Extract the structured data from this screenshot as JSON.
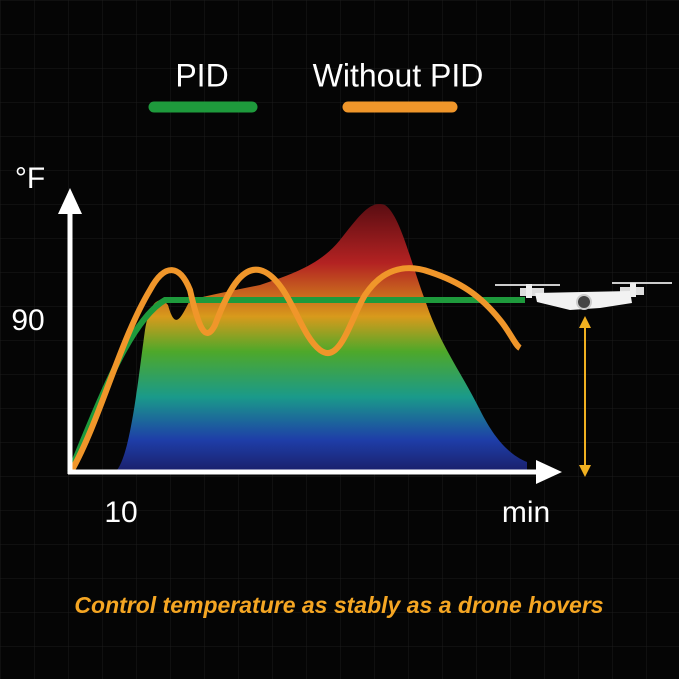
{
  "legend": {
    "items": [
      "PID",
      "Without PID"
    ]
  },
  "axes": {
    "y_unit": "°F",
    "y_label": "90",
    "x_label": "10",
    "x_unit": "min"
  },
  "caption": "Control temperature as stably as a drone hovers"
}
